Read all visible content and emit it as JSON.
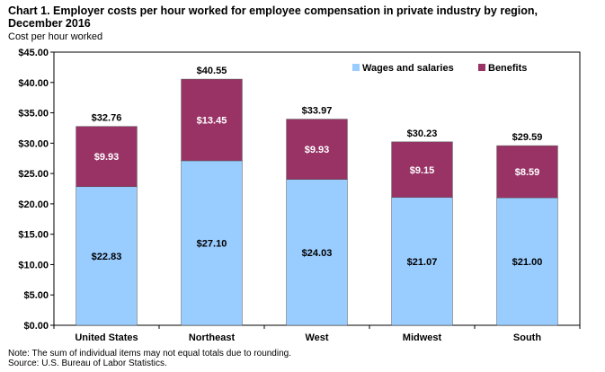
{
  "title": "Chart 1. Employer costs per hour worked for employee compensation in private industry by region, December 2016",
  "ylabel": "Cost per hour worked",
  "note": "Note: The sum of individual items may not equal totals due to rounding.",
  "source": "Source: U.S. Bureau of Labor Statistics.",
  "chart_data": {
    "type": "bar",
    "stacked": true,
    "categories": [
      "United States",
      "Northeast",
      "West",
      "Midwest",
      "South"
    ],
    "series": [
      {
        "name": "Wages and salaries",
        "color": "#99ccff",
        "values": [
          22.83,
          27.1,
          24.03,
          21.07,
          21.0
        ],
        "labels": [
          "$22.83",
          "$27.10",
          "$24.03",
          "$21.07",
          "$21.00"
        ]
      },
      {
        "name": "Benefits",
        "color": "#993366",
        "values": [
          9.93,
          13.45,
          9.93,
          9.15,
          8.59
        ],
        "labels": [
          "$9.93",
          "$13.45",
          "$9.93",
          "$9.15",
          "$8.59"
        ]
      }
    ],
    "totals": [
      32.76,
      40.55,
      33.97,
      30.23,
      29.59
    ],
    "total_labels": [
      "$32.76",
      "$40.55",
      "$33.97",
      "$30.23",
      "$29.59"
    ],
    "ylim": [
      0,
      45
    ],
    "yticks": [
      "$0.00",
      "$5.00",
      "$10.00",
      "$15.00",
      "$20.00",
      "$25.00",
      "$30.00",
      "$35.00",
      "$40.00",
      "$45.00"
    ],
    "ytick_values": [
      0,
      5,
      10,
      15,
      20,
      25,
      30,
      35,
      40,
      45
    ],
    "legend_position": "top-right",
    "grid": false
  }
}
